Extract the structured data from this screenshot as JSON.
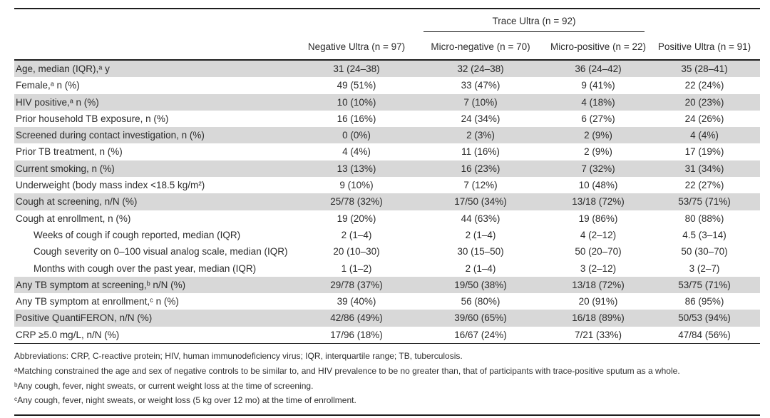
{
  "table": {
    "group_header": "Trace Ultra (n = 92)",
    "columns": [
      "Negative Ultra (n = 97)",
      "Micro-negative (n = 70)",
      "Micro-positive (n = 22)",
      "Positive Ultra (n = 91)"
    ],
    "rows": [
      {
        "label": "Age, median (IQR),ᵃ y",
        "shaded": true,
        "indent": false,
        "values": [
          "31 (24–38)",
          "32 (24–38)",
          "36 (24–42)",
          "35 (28–41)"
        ]
      },
      {
        "label": "Female,ᵃ n (%)",
        "shaded": false,
        "indent": false,
        "values": [
          "49 (51%)",
          "33 (47%)",
          "9 (41%)",
          "22 (24%)"
        ]
      },
      {
        "label": "HIV positive,ᵃ n (%)",
        "shaded": true,
        "indent": false,
        "values": [
          "10 (10%)",
          "7 (10%)",
          "4 (18%)",
          "20 (23%)"
        ]
      },
      {
        "label": "Prior household TB exposure, n (%)",
        "shaded": false,
        "indent": false,
        "values": [
          "16 (16%)",
          "24 (34%)",
          "6 (27%)",
          "24 (26%)"
        ]
      },
      {
        "label": "Screened during contact investigation, n (%)",
        "shaded": true,
        "indent": false,
        "values": [
          "0 (0%)",
          "2 (3%)",
          "2 (9%)",
          "4 (4%)"
        ]
      },
      {
        "label": "Prior TB treatment, n (%)",
        "shaded": false,
        "indent": false,
        "values": [
          "4 (4%)",
          "11 (16%)",
          "2 (9%)",
          "17 (19%)"
        ]
      },
      {
        "label": "Current smoking, n (%)",
        "shaded": true,
        "indent": false,
        "values": [
          "13 (13%)",
          "16 (23%)",
          "7 (32%)",
          "31 (34%)"
        ]
      },
      {
        "label": "Underweight (body mass index <18.5 kg/m²)",
        "shaded": false,
        "indent": false,
        "values": [
          "9 (10%)",
          "7 (12%)",
          "10 (48%)",
          "22 (27%)"
        ]
      },
      {
        "label": "Cough at screening, n/N (%)",
        "shaded": true,
        "indent": false,
        "values": [
          "25/78 (32%)",
          "17/50 (34%)",
          "13/18 (72%)",
          "53/75 (71%)"
        ]
      },
      {
        "label": "Cough at enrollment, n (%)",
        "shaded": false,
        "indent": false,
        "values": [
          "19 (20%)",
          "44 (63%)",
          "19 (86%)",
          "80 (88%)"
        ]
      },
      {
        "label": "Weeks of cough if cough reported, median (IQR)",
        "shaded": false,
        "indent": true,
        "values": [
          "2 (1–4)",
          "2 (1–4)",
          "4 (2–12)",
          "4.5 (3–14)"
        ]
      },
      {
        "label": "Cough severity on 0–100 visual analog scale, median (IQR)",
        "shaded": false,
        "indent": true,
        "values": [
          "20 (10–30)",
          "30 (15–50)",
          "50 (20–70)",
          "50 (30–70)"
        ]
      },
      {
        "label": "Months with cough over the past year, median (IQR)",
        "shaded": false,
        "indent": true,
        "values": [
          "1 (1–2)",
          "2 (1–4)",
          "3 (2–12)",
          "3 (2–7)"
        ]
      },
      {
        "label": "Any TB symptom at screening,ᵇ n/N (%)",
        "shaded": true,
        "indent": false,
        "values": [
          "29/78 (37%)",
          "19/50 (38%)",
          "13/18 (72%)",
          "53/75 (71%)"
        ]
      },
      {
        "label": "Any TB symptom at enrollment,ᶜ n (%)",
        "shaded": false,
        "indent": false,
        "values": [
          "39 (40%)",
          "56 (80%)",
          "20 (91%)",
          "86 (95%)"
        ]
      },
      {
        "label": "Positive QuantiFERON, n/N (%)",
        "shaded": true,
        "indent": false,
        "values": [
          "42/86 (49%)",
          "39/60 (65%)",
          "16/18 (89%)",
          "50/53 (94%)"
        ]
      },
      {
        "label": "CRP ≥5.0 mg/L, n/N (%)",
        "shaded": false,
        "indent": false,
        "values": [
          "17/96 (18%)",
          "16/67 (24%)",
          "7/21 (33%)",
          "47/84 (56%)"
        ]
      }
    ]
  },
  "footnotes": {
    "abbreviations": "Abbreviations: CRP, C-reactive protein; HIV, human immunodeficiency virus; IQR, interquartile range; TB, tuberculosis.",
    "a": "ᵃMatching constrained the age and sex of negative controls to be similar to, and HIV prevalence to be no greater than, that of participants with trace-positive sputum as a whole.",
    "b": "ᵇAny cough, fever, night sweats, or current weight loss at the time of screening.",
    "c": "ᶜAny cough, fever, night sweats, or weight loss (5 kg over 12 mo) at the time of enrollment."
  },
  "colors": {
    "row_shading": "#d8d8d8",
    "rule": "#1f1f1f",
    "text": "#2b2b2b",
    "background": "#ffffff"
  }
}
